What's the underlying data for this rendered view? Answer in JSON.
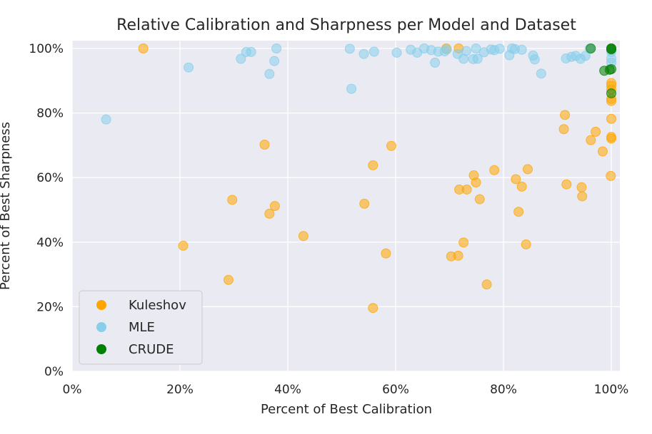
{
  "chart_data": {
    "type": "scatter",
    "title": "Relative Calibration and Sharpness per Model and Dataset",
    "xlabel": "Percent of Best Calibration",
    "ylabel": "Percent of Best Sharpness",
    "xlim": [
      0,
      100
    ],
    "ylim": [
      0,
      100
    ],
    "xticks": [
      0,
      20,
      40,
      60,
      80,
      100
    ],
    "yticks": [
      0,
      20,
      40,
      60,
      80,
      100
    ],
    "xtick_labels": [
      "0%",
      "20%",
      "40%",
      "60%",
      "80%",
      "100%"
    ],
    "ytick_labels": [
      "0%",
      "20%",
      "40%",
      "60%",
      "80%",
      "100%"
    ],
    "grid": true,
    "legend_position": "lower-left",
    "series": [
      {
        "name": "Kuleshov",
        "color": "#ffa500",
        "x": [
          13.2,
          20.6,
          29.0,
          29.7,
          35.7,
          36.6,
          37.6,
          42.9,
          54.2,
          55.8,
          55.8,
          58.2,
          59.2,
          69.4,
          70.3,
          71.6,
          71.7,
          71.8,
          72.6,
          73.2,
          74.5,
          74.9,
          75.6,
          76.9,
          78.3,
          82.3,
          82.8,
          83.4,
          84.2,
          84.5,
          91.2,
          91.4,
          91.7,
          94.5,
          94.6,
          96.2,
          97.1,
          98.4,
          99.9,
          100.0,
          100.0,
          100.0,
          100.0,
          100.0,
          100.0,
          100.0,
          100.0
        ],
        "y": [
          100.0,
          38.9,
          28.3,
          53.1,
          70.2,
          48.8,
          51.2,
          41.9,
          51.9,
          63.8,
          19.6,
          36.5,
          69.8,
          100.0,
          35.6,
          35.8,
          100.0,
          56.3,
          39.9,
          56.3,
          60.7,
          58.5,
          53.3,
          26.9,
          62.3,
          59.5,
          49.4,
          57.2,
          39.3,
          62.6,
          75.0,
          79.4,
          57.9,
          57.0,
          54.2,
          71.6,
          74.2,
          68.1,
          60.5,
          72.1,
          72.6,
          78.2,
          83.7,
          84.4,
          87.3,
          89.3,
          88.5
        ]
      },
      {
        "name": "MLE",
        "color": "#87ceeb",
        "x": [
          6.3,
          21.6,
          31.3,
          32.3,
          33.2,
          36.6,
          37.5,
          37.9,
          51.5,
          51.8,
          54.1,
          56.0,
          60.2,
          62.8,
          64.0,
          65.3,
          66.6,
          67.3,
          67.9,
          69.1,
          69.5,
          71.5,
          72.6,
          73.1,
          74.4,
          74.9,
          75.2,
          76.4,
          77.7,
          78.3,
          79.3,
          81.1,
          81.6,
          82.1,
          83.4,
          85.5,
          85.8,
          87.0,
          91.6,
          92.6,
          93.4,
          94.3,
          95.2,
          96.0,
          100.0,
          100.0,
          100.0
        ],
        "y": [
          78.0,
          94.1,
          96.8,
          98.9,
          98.9,
          92.1,
          96.1,
          100.0,
          99.9,
          87.5,
          98.3,
          99.0,
          98.7,
          99.6,
          98.7,
          100.0,
          99.5,
          95.6,
          99.0,
          99.1,
          99.7,
          98.3,
          96.8,
          99.2,
          96.7,
          100.0,
          96.8,
          98.8,
          99.7,
          99.5,
          99.9,
          97.9,
          100.0,
          99.8,
          99.6,
          97.8,
          96.6,
          92.2,
          96.9,
          97.4,
          97.7,
          96.8,
          97.7,
          99.9,
          98.9,
          95.6,
          96.9
        ]
      },
      {
        "name": "CRUDE",
        "color": "#008000",
        "x": [
          96.2,
          98.7,
          99.7,
          100.0,
          100.0,
          100.0,
          100.0,
          100.0
        ],
        "y": [
          100.0,
          93.1,
          93.4,
          86.1,
          100.0,
          99.7,
          100.0,
          93.6
        ]
      }
    ]
  }
}
